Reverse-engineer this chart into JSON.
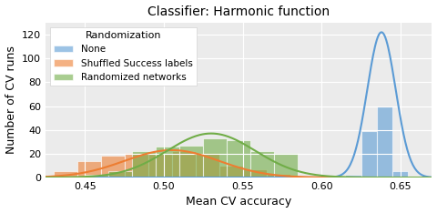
{
  "title": "Classifier: Harmonic function",
  "xlabel": "Mean CV accuracy",
  "ylabel": "Number of CV runs",
  "legend_title": "Randomization",
  "legend_entries": [
    "None",
    "Shuffled Success labels",
    "Randomized networks"
  ],
  "colors": {
    "none": "#5b9bd5",
    "shuffled": "#ed7d31",
    "randomized": "#70ad47"
  },
  "alpha": 0.6,
  "xlim": [
    0.425,
    0.67
  ],
  "ylim": [
    0,
    130
  ],
  "yticks": [
    0,
    20,
    40,
    60,
    80,
    100,
    120
  ],
  "xticks": [
    0.45,
    0.5,
    0.55,
    0.6,
    0.65
  ],
  "figsize": [
    4.8,
    2.34
  ],
  "dpi": 100,
  "none_bin_edges": [
    0.605,
    0.615,
    0.625,
    0.635,
    0.645,
    0.655,
    0.665
  ],
  "none_heights": [
    1,
    2,
    39,
    60,
    5,
    1
  ],
  "shuffled_bin_edges": [
    0.43,
    0.445,
    0.46,
    0.475,
    0.49,
    0.505,
    0.52,
    0.535,
    0.55,
    0.565,
    0.58
  ],
  "shuffled_heights": [
    5,
    14,
    18,
    21,
    21,
    22,
    21,
    10,
    7,
    3
  ],
  "randomized_bin_edges": [
    0.435,
    0.45,
    0.465,
    0.48,
    0.495,
    0.51,
    0.525,
    0.54,
    0.555,
    0.57,
    0.585
  ],
  "randomized_heights": [
    1,
    2,
    5,
    22,
    26,
    27,
    33,
    31,
    22,
    21
  ],
  "none_kde_mean": 0.638,
  "none_kde_std": 0.009,
  "none_kde_peak": 122,
  "shuffled_kde_mean": 0.505,
  "shuffled_kde_std": 0.03,
  "shuffled_kde_peak": 23,
  "randomized_kde_mean": 0.53,
  "randomized_kde_std": 0.028,
  "randomized_kde_peak": 37
}
